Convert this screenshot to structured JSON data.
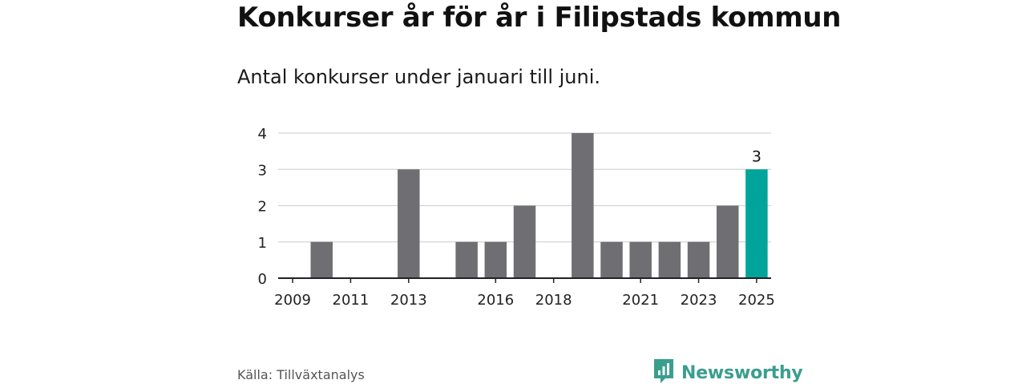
{
  "title": "Konkurser år för år i Filipstads kommun",
  "subtitle": "Antal konkurser under januari till juni.",
  "source": "Källa: Tillväxtanalys",
  "brand": {
    "name": "Newsworthy",
    "icon": "newsworthy-logo-icon"
  },
  "colors": {
    "bar": "#6f6e73",
    "highlight": "#00a49a",
    "grid": "#d4d4d4",
    "axis": "#222222",
    "brand": "#3a9e8e"
  },
  "chart_data": {
    "type": "bar",
    "title": "Konkurser år för år i Filipstads kommun",
    "subtitle": "Antal konkurser under januari till juni.",
    "xlabel": "",
    "ylabel": "",
    "categories": [
      "2009",
      "2010",
      "2011",
      "2012",
      "2013",
      "2014",
      "2015",
      "2016",
      "2017",
      "2018",
      "2019",
      "2020",
      "2021",
      "2022",
      "2023",
      "2024",
      "2025"
    ],
    "values": [
      0,
      1,
      0,
      0,
      3,
      0,
      1,
      1,
      2,
      0,
      4,
      1,
      1,
      1,
      1,
      2,
      3
    ],
    "highlight": "2025",
    "data_labels": [
      {
        "category": "2025",
        "text": "3"
      }
    ],
    "x_tick_labels": [
      "2009",
      "2011",
      "2013",
      "2016",
      "2018",
      "2021",
      "2023",
      "2025"
    ],
    "y_ticks": [
      0,
      1,
      2,
      3,
      4
    ],
    "ylim": [
      0,
      4
    ],
    "grid": true,
    "legend": "none"
  }
}
